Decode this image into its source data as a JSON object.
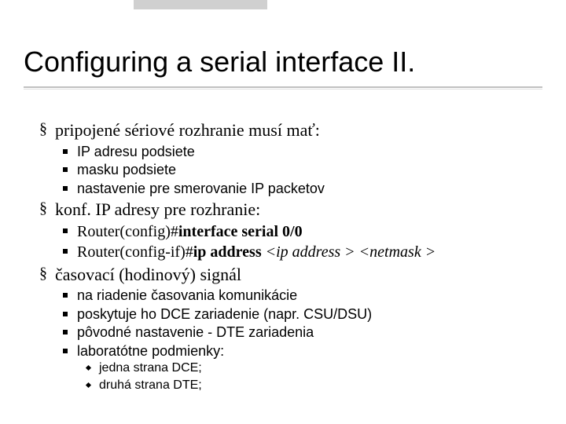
{
  "title": "Configuring a serial interface II.",
  "b1": {
    "text": "pripojené sériové rozhranie musí mať:",
    "sub": [
      "IP adresu podsiete",
      "masku podsiete",
      "nastavenie pre smerovanie IP packetov"
    ]
  },
  "b2": {
    "text": "konf. IP adresy pre rozhranie:",
    "cmds": [
      {
        "prompt": "Router(config)#",
        "cmd": "interface serial 0/0"
      },
      {
        "prompt": "Router(config-if)#",
        "cmd": "ip address",
        "arg1": "<ip address >",
        "arg2": "<netmask >"
      }
    ]
  },
  "b3": {
    "text": "časovací (hodinový) signál",
    "sub": [
      "na riadenie časovania komunikácie",
      "poskytuje ho DCE zariadenie (napr. CSU/DSU)",
      "pôvodné nastavenie - DTE zariadenia",
      "laboratótne podmienky:"
    ],
    "subsub": [
      "jedna strana DCE;",
      "druhá strana DTE;"
    ]
  },
  "style": {
    "background_color": "#ffffff",
    "text_color": "#000000",
    "title_fontsize": 36,
    "lvl1_fontsize": 22,
    "lvl2_fontsize": 18,
    "lvl3_fontsize": 16,
    "accent_gray": "#c0c0c0"
  }
}
